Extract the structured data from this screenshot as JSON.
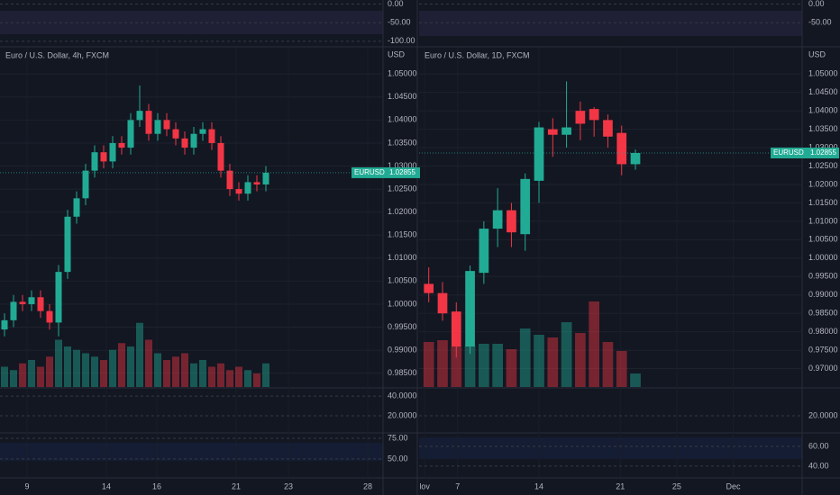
{
  "chart_data": [
    {
      "type": "candlestick",
      "title": "Euro / U.S. Dollar, 4h, FXCM",
      "unit": "USD",
      "symbol": "EURUSD",
      "price_label": "1.02855",
      "up_color": "#22ab94",
      "down_color": "#f23645",
      "open": [
        0.9945,
        0.9965,
        1.0005,
        1.0,
        1.0015,
        0.9985,
        0.996,
        1.007,
        1.019,
        1.023,
        1.029,
        1.033,
        1.031,
        1.035,
        1.034,
        1.04,
        1.042,
        1.037,
        1.04,
        1.038,
        1.036,
        1.034,
        1.037,
        1.038,
        1.035,
        1.029,
        1.025,
        1.024,
        1.0265,
        1.026
      ],
      "high": [
        0.998,
        1.002,
        1.002,
        1.003,
        1.003,
        1.0,
        1.0085,
        1.0205,
        1.0245,
        1.0305,
        1.0345,
        1.0345,
        1.0365,
        1.0365,
        1.0415,
        1.0475,
        1.0435,
        1.0415,
        1.0415,
        1.0395,
        1.0375,
        1.0385,
        1.0395,
        1.0395,
        1.0365,
        1.0305,
        1.0265,
        1.028,
        1.028,
        1.03
      ],
      "low": [
        0.993,
        0.995,
        0.9985,
        0.9985,
        0.997,
        0.9945,
        0.993,
        1.0055,
        1.0175,
        1.0215,
        1.0275,
        1.0295,
        1.0295,
        1.0325,
        1.0325,
        1.0385,
        1.0355,
        1.0355,
        1.0365,
        1.0345,
        1.0325,
        1.0325,
        1.0355,
        1.0335,
        1.0275,
        1.0235,
        1.0225,
        1.0225,
        1.0245,
        1.0245
      ],
      "close": [
        0.9965,
        1.0005,
        1.0,
        1.0015,
        0.9985,
        0.996,
        1.007,
        1.019,
        1.023,
        1.029,
        1.033,
        1.031,
        1.035,
        1.034,
        1.04,
        1.042,
        1.037,
        1.04,
        1.038,
        1.036,
        1.034,
        1.037,
        1.038,
        1.035,
        1.029,
        1.025,
        1.024,
        1.0265,
        1.026,
        1.02855
      ],
      "volume": [
        30,
        25,
        35,
        40,
        30,
        45,
        70,
        60,
        55,
        50,
        45,
        40,
        55,
        65,
        60,
        95,
        70,
        50,
        40,
        45,
        50,
        35,
        40,
        30,
        35,
        25,
        30,
        25,
        20,
        35
      ],
      "volume_lim": [
        0,
        100
      ],
      "xlim": [
        -0.5,
        42
      ],
      "xticks": [
        {
          "value": 2.5,
          "label": "9"
        },
        {
          "value": 11.3,
          "label": "14"
        },
        {
          "value": 16.9,
          "label": "16"
        },
        {
          "value": 25.7,
          "label": "21"
        },
        {
          "value": 31.5,
          "label": "23"
        },
        {
          "value": 40.3,
          "label": "28"
        }
      ],
      "ylim": [
        0.982,
        1.052
      ],
      "yticks": [
        {
          "value": 1.05,
          "label": "1.05000"
        },
        {
          "value": 1.045,
          "label": "1.04500"
        },
        {
          "value": 1.04,
          "label": "1.04000"
        },
        {
          "value": 1.035,
          "label": "1.03500"
        },
        {
          "value": 1.03,
          "label": "1.03000"
        },
        {
          "value": 1.025,
          "label": "1.02500"
        },
        {
          "value": 1.02,
          "label": "1.02000"
        },
        {
          "value": 1.015,
          "label": "1.01500"
        },
        {
          "value": 1.01,
          "label": "1.01000"
        },
        {
          "value": 1.005,
          "label": "1.00500"
        },
        {
          "value": 1.0,
          "label": "1.00000"
        },
        {
          "value": 0.995,
          "label": "0.99500"
        },
        {
          "value": 0.99,
          "label": "0.99000"
        },
        {
          "value": 0.985,
          "label": "0.98500"
        }
      ],
      "panes": [
        {
          "ylim": [
            -110,
            11
          ],
          "yticks": [
            {
              "value": 0,
              "label": "0.00"
            },
            {
              "value": -50,
              "label": "-50.00"
            },
            {
              "value": -100,
              "label": "-100.00"
            }
          ]
        },
        {
          "ylim": [
            3.5,
            47.5
          ],
          "yticks": [
            {
              "value": 40,
              "label": "40.0000"
            },
            {
              "value": 20,
              "label": "20.0000"
            }
          ]
        },
        {
          "ylim": [
            28,
            80.5
          ],
          "yticks": [
            {
              "value": 75,
              "label": "75.00"
            },
            {
              "value": 50,
              "label": "50.00"
            }
          ]
        }
      ]
    },
    {
      "type": "candlestick",
      "title": "Euro / U.S. Dollar, 1D, FXCM",
      "unit": "USD",
      "symbol": "EURUSD",
      "price_label": "1.02855",
      "up_color": "#22ab94",
      "down_color": "#f23645",
      "open": [
        0.993,
        0.9905,
        0.9855,
        0.976,
        0.996,
        1.008,
        1.013,
        1.0065,
        1.021,
        1.035,
        1.0335,
        1.04,
        1.0405,
        1.0375,
        1.034,
        1.0255
      ],
      "high": [
        0.9975,
        0.9935,
        0.988,
        0.998,
        1.01,
        1.019,
        1.015,
        1.023,
        1.037,
        1.038,
        1.048,
        1.0425,
        1.041,
        1.039,
        1.036,
        1.0295
      ],
      "low": [
        0.988,
        0.983,
        0.973,
        0.974,
        0.993,
        1.003,
        1.003,
        1.002,
        1.015,
        1.0275,
        1.03,
        1.032,
        1.033,
        1.03,
        1.0225,
        1.024
      ],
      "close": [
        0.9905,
        0.985,
        0.976,
        0.9965,
        1.008,
        1.013,
        1.007,
        1.0215,
        1.0355,
        1.0335,
        1.0355,
        1.0365,
        1.0375,
        1.033,
        1.0255,
        1.02855
      ],
      "volume": [
        50,
        52,
        45,
        46,
        48,
        48,
        42,
        65,
        58,
        55,
        72,
        60,
        95,
        50,
        40,
        15
      ],
      "volume_lim": [
        0,
        100
      ],
      "xlim": [
        -0.7,
        27.1
      ],
      "xticks": [
        {
          "value": -0.3,
          "label": "lov"
        },
        {
          "value": 2.1,
          "label": "7"
        },
        {
          "value": 8,
          "label": "14"
        },
        {
          "value": 13.9,
          "label": "21"
        },
        {
          "value": 18,
          "label": "25"
        },
        {
          "value": 22.1,
          "label": "Dec"
        }
      ],
      "ylim": [
        0.965,
        1.0525
      ],
      "yticks": [
        {
          "value": 1.05,
          "label": "1.05000"
        },
        {
          "value": 1.045,
          "label": "1.04500"
        },
        {
          "value": 1.04,
          "label": "1.04000"
        },
        {
          "value": 1.035,
          "label": "1.03500"
        },
        {
          "value": 1.03,
          "label": "1.03000"
        },
        {
          "value": 1.025,
          "label": "1.02500"
        },
        {
          "value": 1.02,
          "label": "1.02000"
        },
        {
          "value": 1.015,
          "label": "1.01500"
        },
        {
          "value": 1.01,
          "label": "1.01000"
        },
        {
          "value": 1.005,
          "label": "1.00500"
        },
        {
          "value": 1.0,
          "label": "1.00000"
        },
        {
          "value": 0.995,
          "label": "0.99500"
        },
        {
          "value": 0.99,
          "label": "0.99000"
        },
        {
          "value": 0.985,
          "label": "0.98500"
        },
        {
          "value": 0.98,
          "label": "0.98000"
        },
        {
          "value": 0.975,
          "label": "0.97500"
        },
        {
          "value": 0.97,
          "label": "0.97000"
        }
      ],
      "panes": [
        {
          "ylim": [
            -110,
            11
          ],
          "yticks": [
            {
              "value": 0,
              "label": "0.00"
            },
            {
              "value": -50,
              "label": "-50.00"
            }
          ]
        },
        {
          "ylim": [
            3.5,
            47.5
          ],
          "yticks": [
            {
              "value": 20,
              "label": "20.0000"
            }
          ]
        },
        {
          "ylim": [
            29,
            72.7
          ],
          "yticks": [
            {
              "value": 60,
              "label": "60.00"
            },
            {
              "value": 40,
              "label": "40.00"
            }
          ]
        }
      ]
    }
  ]
}
